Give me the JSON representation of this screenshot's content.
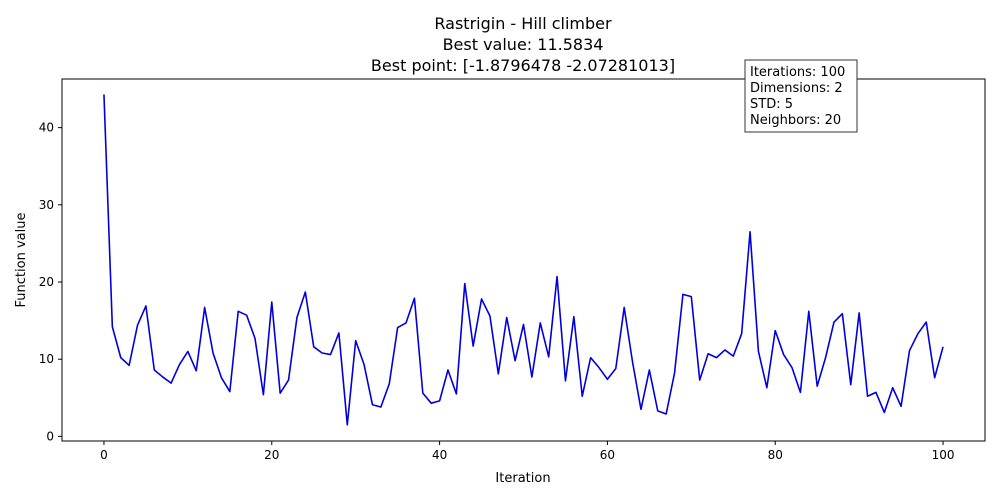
{
  "chart_data": {
    "type": "line",
    "title": "Rastrigin - Hill climber",
    "subtitle_lines": [
      "Best value: 11.5834",
      "Best point: [-1.8796478  -2.07281013]"
    ],
    "xlabel": "Iteration",
    "ylabel": "Function value",
    "xlim": [
      -5,
      105
    ],
    "ylim": [
      -0.6,
      46.3
    ],
    "xticks": [
      0,
      20,
      40,
      60,
      80,
      100
    ],
    "yticks": [
      0,
      10,
      20,
      30,
      40
    ],
    "grid": false,
    "series": [
      {
        "color": "#0000dd",
        "x": [
          0,
          1,
          2,
          3,
          4,
          5,
          6,
          7,
          8,
          9,
          10,
          11,
          12,
          13,
          14,
          15,
          16,
          17,
          18,
          19,
          20,
          21,
          22,
          23,
          24,
          25,
          26,
          27,
          28,
          29,
          30,
          31,
          32,
          33,
          34,
          35,
          36,
          37,
          38,
          39,
          40,
          41,
          42,
          43,
          44,
          45,
          46,
          47,
          48,
          49,
          50,
          51,
          52,
          53,
          54,
          55,
          56,
          57,
          58,
          59,
          60,
          61,
          62,
          63,
          64,
          65,
          66,
          67,
          68,
          69,
          70,
          71,
          72,
          73,
          74,
          75,
          76,
          77,
          78,
          79,
          80,
          81,
          82,
          83,
          84,
          85,
          86,
          87,
          88,
          89,
          90,
          91,
          92,
          93,
          94,
          95,
          96,
          97,
          98,
          99,
          100
        ],
        "values": [
          44.3,
          14.2,
          10.2,
          9.2,
          14.4,
          16.9,
          8.6,
          7.7,
          6.9,
          9.3,
          11.0,
          8.5,
          16.7,
          10.8,
          7.6,
          5.8,
          16.2,
          15.7,
          12.7,
          5.4,
          17.4,
          5.6,
          7.3,
          15.4,
          18.7,
          11.6,
          10.8,
          10.6,
          13.4,
          1.5,
          12.4,
          9.3,
          4.1,
          3.8,
          6.8,
          14.1,
          14.7,
          17.9,
          5.6,
          4.3,
          4.6,
          8.6,
          5.5,
          19.8,
          11.7,
          17.8,
          15.6,
          8.1,
          15.4,
          9.8,
          14.5,
          7.7,
          14.7,
          10.3,
          20.7,
          7.2,
          15.5,
          5.2,
          10.2,
          8.9,
          7.4,
          8.8,
          16.7,
          9.6,
          3.5,
          8.6,
          3.3,
          2.9,
          8.2,
          18.4,
          18.1,
          7.3,
          10.7,
          10.2,
          11.2,
          10.4,
          13.3,
          26.5,
          11.0,
          6.3,
          13.7,
          10.6,
          8.9,
          5.7,
          16.2,
          6.5,
          10.2,
          14.8,
          15.9,
          6.7,
          16.0,
          5.2,
          5.7,
          3.1,
          6.3,
          3.9,
          11.1,
          13.3,
          14.8,
          7.6,
          11.6
        ]
      }
    ],
    "annotation": {
      "lines": [
        "Iterations: 100",
        "Dimensions: 2",
        "STD: 5",
        "Neighbors: 20"
      ],
      "placement": "top-right"
    }
  }
}
